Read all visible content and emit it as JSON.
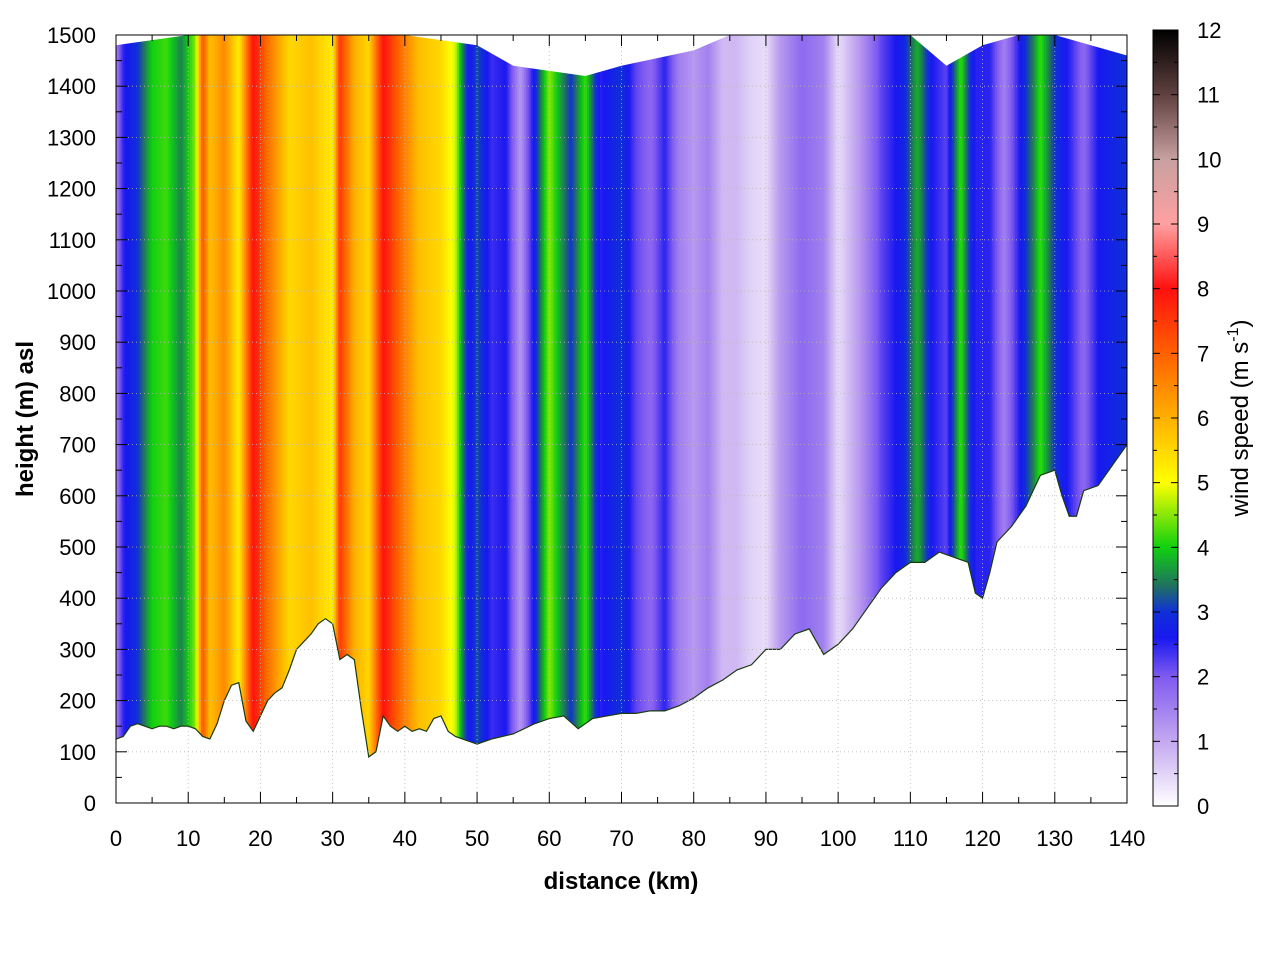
{
  "chart_data": {
    "type": "heatmap",
    "title": "",
    "xlabel": "distance (km)",
    "ylabel": "height (m) asl",
    "xlim": [
      0,
      140
    ],
    "ylim": [
      0,
      1500
    ],
    "x_ticks": [
      "0",
      "10",
      "20",
      "30",
      "40",
      "50",
      "60",
      "70",
      "80",
      "90",
      "100",
      "110",
      "120",
      "130",
      "140"
    ],
    "y_ticks": [
      "0",
      "100",
      "200",
      "300",
      "400",
      "500",
      "600",
      "700",
      "800",
      "900",
      "1000",
      "1100",
      "1200",
      "1300",
      "1400",
      "1500"
    ],
    "grid": true,
    "colorbar": {
      "label_main": "wind speed (m s",
      "label_sup": "-1",
      "label_end": ")",
      "range": [
        0,
        12
      ],
      "ticks": [
        "0",
        "1",
        "2",
        "3",
        "4",
        "5",
        "6",
        "7",
        "8",
        "9",
        "10",
        "11",
        "12"
      ],
      "palette": [
        {
          "v": 0,
          "color": "#ffffff"
        },
        {
          "v": 1,
          "color": "#c4a8f0"
        },
        {
          "v": 2,
          "color": "#7f5af0"
        },
        {
          "v": 2.6,
          "color": "#1818f0"
        },
        {
          "v": 3,
          "color": "#1030d8"
        },
        {
          "v": 3.4,
          "color": "#207060"
        },
        {
          "v": 4,
          "color": "#10d010"
        },
        {
          "v": 5,
          "color": "#ffff00"
        },
        {
          "v": 6,
          "color": "#ffb000"
        },
        {
          "v": 7,
          "color": "#ff6000"
        },
        {
          "v": 8,
          "color": "#ff1010"
        },
        {
          "v": 9,
          "color": "#ffa0a0"
        },
        {
          "v": 10,
          "color": "#c8a0a0"
        },
        {
          "v": 11,
          "color": "#604040"
        },
        {
          "v": 12,
          "color": "#000000"
        }
      ]
    },
    "terrain_height": {
      "x": [
        0,
        1,
        2,
        3,
        4,
        5,
        6,
        7,
        8,
        9,
        10,
        11,
        12,
        13,
        14,
        15,
        16,
        17,
        18,
        19,
        20,
        21,
        22,
        23,
        24,
        25,
        26,
        27,
        28,
        29,
        30,
        31,
        32,
        33,
        34,
        35,
        36,
        37,
        38,
        39,
        40,
        41,
        42,
        43,
        44,
        45,
        46,
        47,
        48,
        49,
        50,
        52,
        55,
        58,
        60,
        62,
        64,
        66,
        68,
        70,
        72,
        74,
        76,
        78,
        80,
        82,
        84,
        86,
        88,
        90,
        92,
        94,
        96,
        98,
        100,
        102,
        104,
        106,
        108,
        110,
        112,
        114,
        116,
        118,
        119,
        120,
        121,
        122,
        124,
        126,
        128,
        130,
        131,
        132,
        133,
        134,
        136,
        138,
        140
      ],
      "y": [
        125,
        130,
        150,
        155,
        150,
        145,
        150,
        150,
        145,
        150,
        150,
        145,
        130,
        125,
        155,
        200,
        230,
        235,
        160,
        140,
        170,
        200,
        215,
        225,
        260,
        300,
        315,
        330,
        350,
        360,
        350,
        280,
        290,
        280,
        180,
        90,
        100,
        170,
        150,
        140,
        150,
        140,
        145,
        140,
        165,
        170,
        140,
        130,
        125,
        120,
        115,
        125,
        135,
        155,
        165,
        170,
        145,
        165,
        170,
        175,
        175,
        180,
        180,
        190,
        205,
        225,
        240,
        260,
        270,
        300,
        300,
        330,
        340,
        290,
        310,
        340,
        380,
        420,
        450,
        470,
        470,
        490,
        480,
        470,
        410,
        400,
        450,
        510,
        540,
        580,
        640,
        650,
        600,
        560,
        560,
        610,
        620,
        660,
        700
      ]
    },
    "data_top": {
      "x": [
        0,
        5,
        10,
        20,
        30,
        40,
        50,
        55,
        60,
        65,
        70,
        80,
        85,
        90,
        100,
        110,
        115,
        120,
        125,
        130,
        135,
        140
      ],
      "y": [
        1480,
        1490,
        1500,
        1500,
        1500,
        1500,
        1480,
        1440,
        1430,
        1420,
        1440,
        1470,
        1500,
        1500,
        1500,
        1500,
        1440,
        1480,
        1500,
        1500,
        1480,
        1460
      ]
    },
    "profile_speed": {
      "x": [
        0,
        1,
        3,
        5,
        7,
        9,
        11,
        12,
        13,
        15,
        17,
        19,
        21,
        24,
        27,
        30,
        31,
        33,
        35,
        37,
        39,
        42,
        45,
        47,
        48,
        49,
        50,
        52,
        54,
        56,
        58,
        60,
        62,
        63,
        65,
        67,
        70,
        72,
        74,
        76,
        78,
        80,
        82,
        84,
        86,
        88,
        90,
        92,
        95,
        98,
        100,
        103,
        106,
        109,
        111,
        113,
        115,
        117,
        118,
        119,
        121,
        123,
        125,
        127,
        128,
        130,
        132,
        134,
        136,
        138,
        140
      ],
      "v": [
        1.5,
        2.5,
        3.0,
        4.0,
        4.2,
        3.5,
        4.5,
        7.2,
        5.8,
        6.5,
        5.2,
        8.0,
        6.8,
        5.5,
        5.8,
        5.2,
        7.5,
        6.0,
        5.5,
        8.0,
        7.0,
        5.8,
        5.5,
        4.8,
        3.5,
        2.6,
        3.2,
        2.4,
        2.6,
        1.2,
        2.8,
        4.5,
        3.5,
        3.0,
        4.2,
        2.5,
        3.0,
        2.2,
        1.8,
        2.5,
        1.5,
        1.2,
        1.5,
        0.8,
        0.8,
        0.5,
        0.4,
        1.2,
        1.8,
        1.5,
        0.4,
        1.2,
        2.2,
        2.8,
        3.8,
        2.6,
        2.2,
        4.2,
        3.2,
        2.5,
        2.5,
        1.5,
        2.5,
        3.5,
        4.2,
        3.0,
        2.5,
        1.8,
        2.6,
        2.8,
        3.0
      ]
    }
  }
}
